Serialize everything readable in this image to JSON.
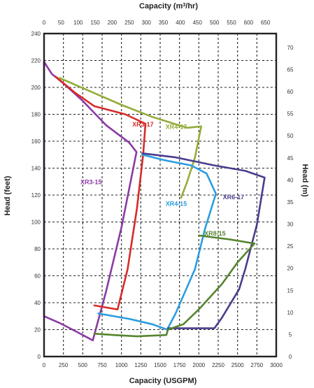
{
  "chart_data": {
    "type": "line",
    "xlabel_bottom": "Capacity (USGPM)",
    "xlabel_top_prefix": "Capacity (m",
    "xlabel_top_sup": "3",
    "xlabel_top_suffix": "/hr)",
    "ylabel_left": "Head (feet)",
    "ylabel_right": "Head (m)",
    "x_bottom_range": [
      0,
      3000
    ],
    "y_left_range": [
      0,
      240
    ],
    "x_bottom_ticks": [
      0,
      250,
      500,
      750,
      1000,
      1250,
      1500,
      1750,
      2000,
      2250,
      2500,
      2750,
      3000
    ],
    "y_left_ticks": [
      0,
      20,
      40,
      60,
      80,
      100,
      120,
      140,
      160,
      180,
      200,
      220,
      240
    ],
    "x_top_ticks": [
      0,
      50,
      100,
      150,
      200,
      250,
      300,
      350,
      400,
      450,
      500,
      550,
      600,
      650
    ],
    "y_right_ticks": [
      0,
      5,
      10,
      15,
      20,
      25,
      30,
      35,
      40,
      45,
      50,
      55,
      60,
      65,
      70
    ],
    "grid": true,
    "series": [
      {
        "name": "XR3-15",
        "color": "#8b3aa5",
        "label_at": [
          470,
          128
        ],
        "points": [
          [
            0,
            219
          ],
          [
            100,
            210
          ],
          [
            250,
            203
          ],
          [
            500,
            190
          ],
          [
            800,
            172
          ],
          [
            1100,
            159
          ],
          [
            1195,
            152
          ],
          [
            1000,
            96
          ],
          [
            800,
            48
          ],
          [
            630,
            12
          ],
          [
            400,
            19
          ],
          [
            200,
            25
          ],
          [
            0,
            30
          ],
          [
            0,
            219
          ]
        ]
      },
      {
        "name": "XR3-17",
        "color": "#d62b28",
        "label_at": [
          1140,
          171
        ],
        "points": [
          [
            150,
            208
          ],
          [
            400,
            196
          ],
          [
            650,
            186
          ],
          [
            1050,
            180
          ],
          [
            1310,
            173
          ],
          [
            1280,
            150
          ],
          [
            1200,
            110
          ],
          [
            1080,
            65
          ],
          [
            950,
            35
          ],
          [
            650,
            38
          ]
        ]
      },
      {
        "name": "XR4-17",
        "color": "#93ad3a",
        "label_at": [
          1570,
          169
        ],
        "points": [
          [
            200,
            207
          ],
          [
            600,
            197
          ],
          [
            1000,
            187
          ],
          [
            1400,
            178
          ],
          [
            1850,
            170
          ],
          [
            2030,
            171
          ],
          [
            1950,
            148
          ],
          [
            1850,
            130
          ],
          [
            1770,
            118
          ]
        ]
      },
      {
        "name": "XR4-15",
        "color": "#2a9de0",
        "label_at": [
          1570,
          112
        ],
        "points": [
          [
            1270,
            150
          ],
          [
            1550,
            146
          ],
          [
            1900,
            142
          ],
          [
            2100,
            136
          ],
          [
            2220,
            121
          ],
          [
            2080,
            95
          ],
          [
            1950,
            65
          ],
          [
            1700,
            32
          ],
          [
            1590,
            20
          ],
          [
            1400,
            24
          ],
          [
            1100,
            28
          ],
          [
            700,
            32
          ]
        ]
      },
      {
        "name": "XR6-17",
        "color": "#4a3c8c",
        "label_at": [
          2310,
          117
        ],
        "points": [
          [
            1270,
            151
          ],
          [
            1700,
            148
          ],
          [
            2200,
            142
          ],
          [
            2600,
            138
          ],
          [
            2850,
            133
          ],
          [
            2750,
            98
          ],
          [
            2600,
            65
          ],
          [
            2520,
            50
          ],
          [
            2300,
            29
          ],
          [
            2200,
            21
          ],
          [
            1900,
            21
          ],
          [
            1600,
            21
          ]
        ]
      },
      {
        "name": "XR8-15",
        "color": "#55852f",
        "label_at": [
          2070,
          90
        ],
        "points": [
          [
            2000,
            90
          ],
          [
            2400,
            87
          ],
          [
            2720,
            84
          ],
          [
            2500,
            70
          ],
          [
            2300,
            54
          ],
          [
            2000,
            35
          ],
          [
            1800,
            24
          ],
          [
            1600,
            20
          ],
          [
            1580,
            16
          ],
          [
            1200,
            15
          ],
          [
            900,
            16
          ],
          [
            650,
            17
          ]
        ]
      }
    ]
  }
}
